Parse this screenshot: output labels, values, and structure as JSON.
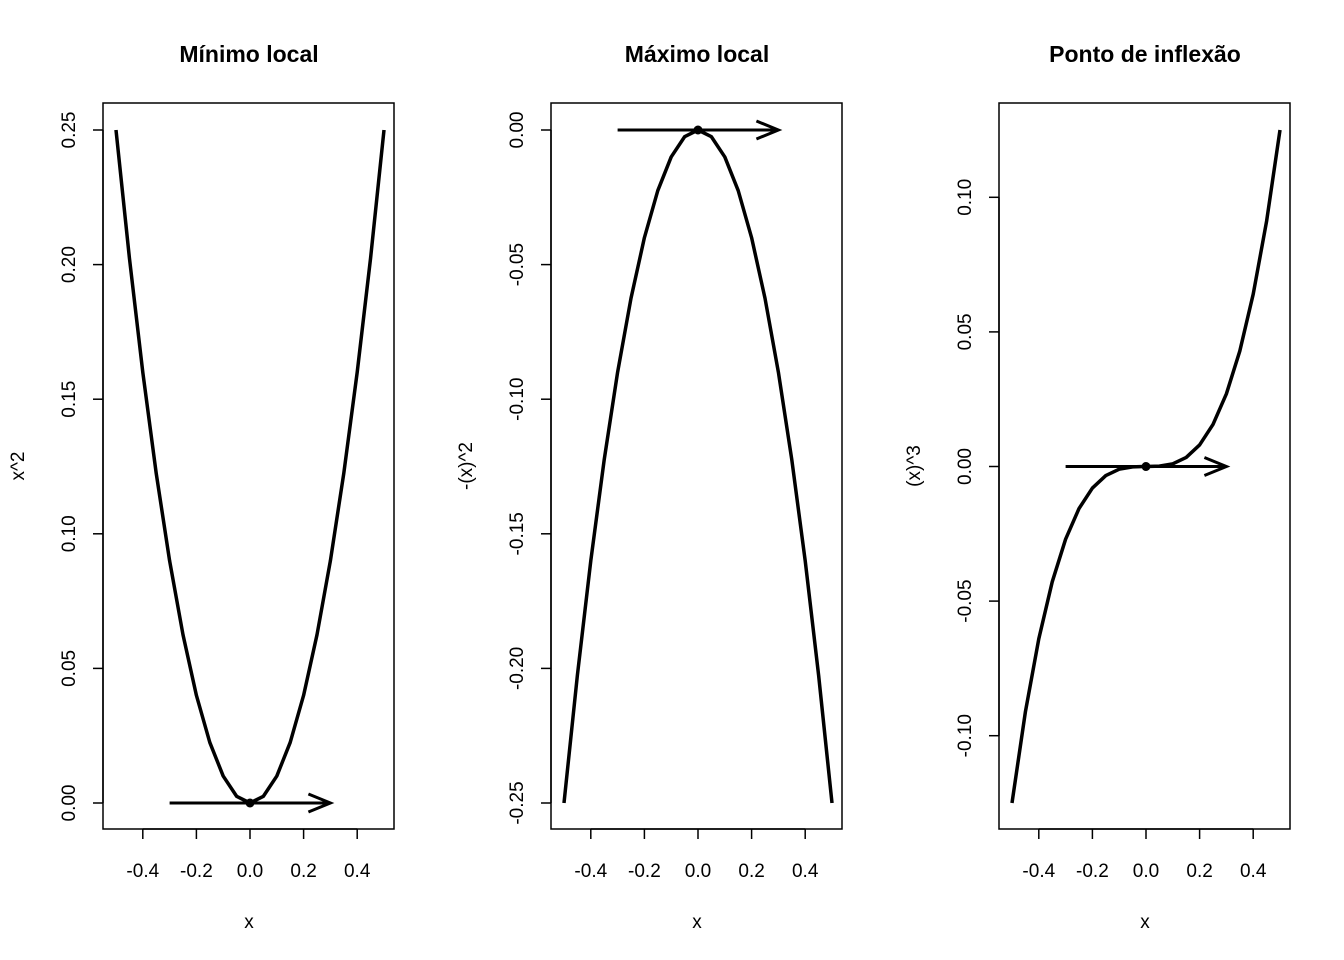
{
  "chart_data": [
    {
      "type": "line",
      "title": "Mínimo local",
      "xlabel": "x",
      "ylabel": "x^2",
      "function": "x^2",
      "xlim": [
        -0.5,
        0.5
      ],
      "ylim": [
        0,
        0.25
      ],
      "x_ticks": [
        -0.4,
        -0.2,
        0.0,
        0.2,
        0.4
      ],
      "x_tick_labels": [
        "-0.4",
        "-0.2",
        "0.0",
        "0.2",
        "0.4"
      ],
      "y_ticks": [
        0,
        0.05,
        0.1,
        0.15,
        0.2,
        0.25
      ],
      "y_tick_labels": [
        "0.00",
        "0.05",
        "0.10",
        "0.15",
        "0.20",
        "0.25"
      ],
      "series": [
        {
          "x": [
            -0.5,
            -0.45,
            -0.4,
            -0.35,
            -0.3,
            -0.25,
            -0.2,
            -0.15,
            -0.1,
            -0.05,
            0.0,
            0.05,
            0.1,
            0.15,
            0.2,
            0.25,
            0.3,
            0.35,
            0.4,
            0.45,
            0.5
          ],
          "y": [
            0.25,
            0.2025,
            0.16,
            0.1225,
            0.09,
            0.0625,
            0.04,
            0.0225,
            0.01,
            0.0025,
            0.0,
            0.0025,
            0.01,
            0.0225,
            0.04,
            0.0625,
            0.09,
            0.1225,
            0.16,
            0.2025,
            0.25
          ]
        }
      ],
      "point": {
        "x": 0,
        "y": 0
      },
      "arrow": {
        "x0": -0.3,
        "y0": 0,
        "x1": 0.3,
        "y1": 0
      }
    },
    {
      "type": "line",
      "title": "Máximo local",
      "xlabel": "x",
      "ylabel": "-(x)^2",
      "function": "-(x)^2",
      "xlim": [
        -0.5,
        0.5
      ],
      "ylim": [
        -0.25,
        0
      ],
      "x_ticks": [
        -0.4,
        -0.2,
        0.0,
        0.2,
        0.4
      ],
      "x_tick_labels": [
        "-0.4",
        "-0.2",
        "0.0",
        "0.2",
        "0.4"
      ],
      "y_ticks": [
        -0.25,
        -0.2,
        -0.15,
        -0.1,
        -0.05,
        0
      ],
      "y_tick_labels": [
        "-0.25",
        "-0.20",
        "-0.15",
        "-0.10",
        "-0.05",
        "0.00"
      ],
      "series": [
        {
          "x": [
            -0.5,
            -0.45,
            -0.4,
            -0.35,
            -0.3,
            -0.25,
            -0.2,
            -0.15,
            -0.1,
            -0.05,
            0.0,
            0.05,
            0.1,
            0.15,
            0.2,
            0.25,
            0.3,
            0.35,
            0.4,
            0.45,
            0.5
          ],
          "y": [
            -0.25,
            -0.2025,
            -0.16,
            -0.1225,
            -0.09,
            -0.0625,
            -0.04,
            -0.0225,
            -0.01,
            -0.0025,
            0.0,
            -0.0025,
            -0.01,
            -0.0225,
            -0.04,
            -0.0625,
            -0.09,
            -0.1225,
            -0.16,
            -0.2025,
            -0.25
          ]
        }
      ],
      "point": {
        "x": 0,
        "y": 0
      },
      "arrow": {
        "x0": -0.3,
        "y0": 0,
        "x1": 0.3,
        "y1": 0
      }
    },
    {
      "type": "line",
      "title": "Ponto de inflexão",
      "xlabel": "x",
      "ylabel": "(x)^3",
      "function": "(x)^3",
      "xlim": [
        -0.5,
        0.5
      ],
      "ylim": [
        -0.125,
        0.125
      ],
      "x_ticks": [
        -0.4,
        -0.2,
        0.0,
        0.2,
        0.4
      ],
      "x_tick_labels": [
        "-0.4",
        "-0.2",
        "0.0",
        "0.2",
        "0.4"
      ],
      "y_ticks": [
        -0.1,
        -0.05,
        0,
        0.05,
        0.1
      ],
      "y_tick_labels": [
        "-0.10",
        "-0.05",
        "0.00",
        "0.05",
        "0.10"
      ],
      "series": [
        {
          "x": [
            -0.5,
            -0.45,
            -0.4,
            -0.35,
            -0.3,
            -0.25,
            -0.2,
            -0.15,
            -0.1,
            -0.05,
            0.0,
            0.05,
            0.1,
            0.15,
            0.2,
            0.25,
            0.3,
            0.35,
            0.4,
            0.45,
            0.5
          ],
          "y": [
            -0.125,
            -0.091125,
            -0.064,
            -0.042875,
            -0.027,
            -0.015625,
            -0.008,
            -0.003375,
            -0.001,
            -0.000125,
            0.0,
            0.000125,
            0.001,
            0.003375,
            0.008,
            0.015625,
            0.027,
            0.042875,
            0.064,
            0.091125,
            0.125
          ]
        }
      ],
      "point": {
        "x": 0,
        "y": 0
      },
      "arrow": {
        "x0": -0.3,
        "y0": 0,
        "x1": 0.3,
        "y1": 0
      }
    }
  ]
}
